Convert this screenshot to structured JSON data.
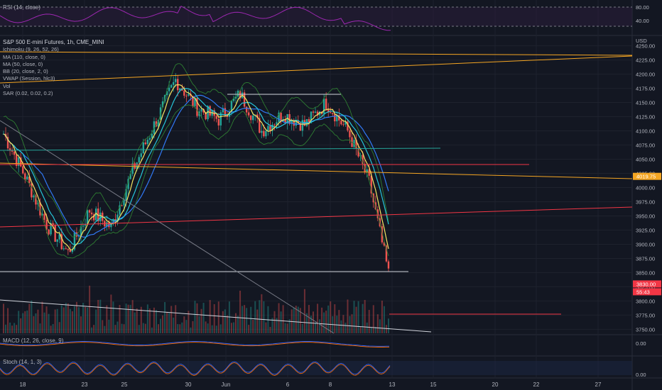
{
  "chart_data": {
    "type": "line",
    "instrument": "S&P 500 E-mini Futures, 1h, CME_MINI",
    "currency": "USD",
    "indicators": [
      "Ichimoku (9, 26, 52, 26)",
      "MA (110, close, 0)",
      "MA (50, close, 0)",
      "BB (20, close, 2, 0)",
      "VWAP (Session, hlc3)",
      "Vol",
      "SAR (0.02, 0.02, 0.2)"
    ],
    "x_ticks": [
      "18",
      "23",
      "25",
      "30",
      "Jun",
      "6",
      "8",
      "13",
      "15",
      "20",
      "22",
      "27"
    ],
    "y_ticks": [
      4250,
      4225,
      4200,
      4175,
      4150,
      4125,
      4100,
      4075,
      4050,
      4025,
      4000,
      3975,
      3950,
      3925,
      3900,
      3875,
      3850,
      3825,
      3800,
      3775,
      3750
    ],
    "ylim": [
      3743,
      4262
    ],
    "price_series": {
      "x": [
        "18",
        "19",
        "20",
        "23",
        "24",
        "25",
        "26",
        "27",
        "30",
        "31",
        "Jun",
        "2",
        "3",
        "6",
        "7",
        "8",
        "9",
        "10",
        "13"
      ],
      "close": [
        4095,
        4020,
        3935,
        3885,
        3960,
        3930,
        4030,
        4110,
        4190,
        4140,
        4120,
        4165,
        4100,
        4130,
        4110,
        4150,
        4100,
        4010,
        3830
      ]
    },
    "price_tags": [
      {
        "label": "4019.75",
        "value": 4019.75,
        "color": "#f5a623"
      },
      {
        "label": "3830.00",
        "value": 3830.0,
        "color": "#f23645"
      },
      {
        "label": "55:43",
        "value": 3820.0,
        "color": "#f23645"
      }
    ],
    "rsi": {
      "label": "RSI (14, close)",
      "ticks": [
        80.0,
        40.0
      ]
    },
    "macd": {
      "label": "MACD (12, 26, close, 9)",
      "ticks": [
        0.0
      ]
    },
    "stoch": {
      "label": "Stoch (14, 1, 3)",
      "ticks": [
        0.0
      ]
    },
    "colors": {
      "background": "#131722",
      "candle_up": "#26a69a",
      "candle_down": "#ef5350",
      "ma110": "#3179f5",
      "ma50": "#26c6da",
      "bb": "#2e7d32",
      "trendline_orange": "#f5a623",
      "trendline_red": "#f23645",
      "trendline_white": "#d1d4dc",
      "rsi": "#9c27b0"
    }
  }
}
